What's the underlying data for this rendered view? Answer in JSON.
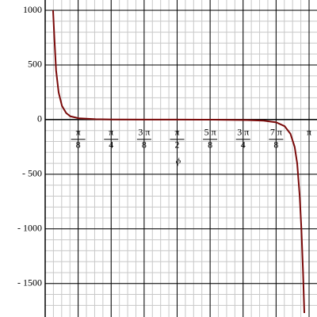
{
  "chart_data": {
    "type": "line",
    "x_label": "ϕ",
    "xlim": [
      0,
      3.14159
    ],
    "ylim": [
      -1770,
      1000
    ],
    "xticks": [
      {
        "value": 0.3927,
        "numerator": "π",
        "denominator": "8"
      },
      {
        "value": 0.7854,
        "numerator": "π",
        "denominator": "4"
      },
      {
        "value": 1.1781,
        "numerator": "3 π",
        "denominator": "8"
      },
      {
        "value": 1.5708,
        "numerator": "π",
        "denominator": "2"
      },
      {
        "value": 1.9635,
        "numerator": "5 π",
        "denominator": "8"
      },
      {
        "value": 2.3562,
        "numerator": "3 π",
        "denominator": "4"
      },
      {
        "value": 2.7489,
        "numerator": "7 π",
        "denominator": "8"
      },
      {
        "value": 3.14159,
        "label": "π"
      }
    ],
    "yticks": [
      1000,
      500,
      0,
      {
        "value": -500,
        "label": "- 500"
      },
      {
        "value": -1000,
        "label": "- 1000"
      },
      {
        "value": -1500,
        "label": "- 1500"
      }
    ],
    "grid": true,
    "minor_grid_x": 4,
    "minor_grid_y": 5,
    "series": [
      {
        "color": "#7a0a0a",
        "x": [
          0.094,
          0.11,
          0.13,
          0.16,
          0.2,
          0.25,
          0.3,
          0.4,
          0.6,
          0.8,
          1.2,
          1.571,
          2.0,
          2.4,
          2.6,
          2.75,
          2.85,
          2.92,
          2.97,
          3.0,
          3.03,
          3.05,
          3.07,
          3.085
        ],
        "values": [
          1000,
          740,
          450,
          250,
          125,
          60,
          30,
          12,
          4,
          1.5,
          0.2,
          0,
          -0.5,
          -4,
          -10,
          -25,
          -60,
          -130,
          -250,
          -400,
          -700,
          -1000,
          -1400,
          -1770
        ]
      }
    ]
  }
}
